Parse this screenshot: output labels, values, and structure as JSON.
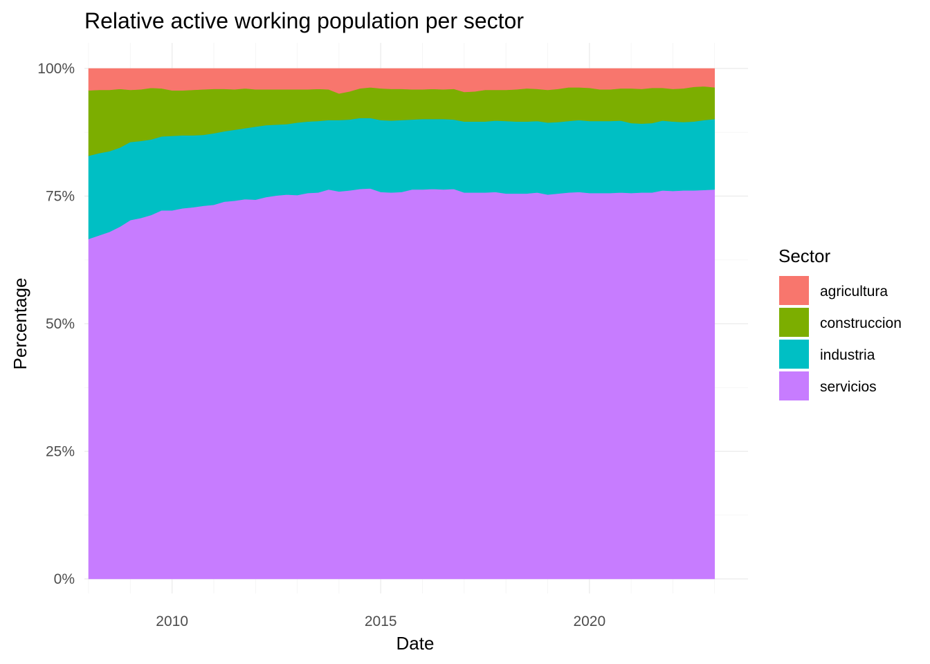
{
  "chart_data": {
    "type": "area",
    "stacked": true,
    "normalized": true,
    "title": "Relative active working population per sector",
    "xlabel": "Date",
    "ylabel": "Percentage",
    "x_ticks": [
      2010,
      2015,
      2020
    ],
    "y_ticks": [
      "0%",
      "25%",
      "50%",
      "75%",
      "100%"
    ],
    "xlim": [
      2007.9,
      2023.8
    ],
    "ylim": [
      0,
      1
    ],
    "grid": true,
    "legend": {
      "title": "Sector",
      "position": "right"
    },
    "x": [
      2008.0,
      2008.25,
      2008.5,
      2008.75,
      2009.0,
      2009.25,
      2009.5,
      2009.75,
      2010.0,
      2010.25,
      2010.5,
      2010.75,
      2011.0,
      2011.25,
      2011.5,
      2011.75,
      2012.0,
      2012.25,
      2012.5,
      2012.75,
      2013.0,
      2013.25,
      2013.5,
      2013.75,
      2014.0,
      2014.25,
      2014.5,
      2014.75,
      2015.0,
      2015.25,
      2015.5,
      2015.75,
      2016.0,
      2016.25,
      2016.5,
      2016.75,
      2017.0,
      2017.25,
      2017.5,
      2017.75,
      2018.0,
      2018.25,
      2018.5,
      2018.75,
      2019.0,
      2019.25,
      2019.5,
      2019.75,
      2020.0,
      2020.25,
      2020.5,
      2020.75,
      2021.0,
      2021.25,
      2021.5,
      2021.75,
      2022.0,
      2022.25,
      2022.5,
      2022.75,
      2023.0
    ],
    "series": [
      {
        "name": "servicios",
        "color": "#C77CFF",
        "values": [
          0.666,
          0.673,
          0.68,
          0.69,
          0.703,
          0.707,
          0.713,
          0.722,
          0.722,
          0.726,
          0.728,
          0.731,
          0.733,
          0.739,
          0.741,
          0.744,
          0.743,
          0.748,
          0.751,
          0.753,
          0.752,
          0.756,
          0.757,
          0.763,
          0.759,
          0.761,
          0.764,
          0.765,
          0.758,
          0.757,
          0.758,
          0.763,
          0.763,
          0.764,
          0.763,
          0.764,
          0.757,
          0.757,
          0.757,
          0.758,
          0.755,
          0.755,
          0.755,
          0.757,
          0.753,
          0.755,
          0.757,
          0.758,
          0.756,
          0.756,
          0.756,
          0.757,
          0.756,
          0.757,
          0.757,
          0.761,
          0.76,
          0.761,
          0.761,
          0.762,
          0.763
        ]
      },
      {
        "name": "industria",
        "color": "#00BFC4",
        "values": [
          0.163,
          0.161,
          0.158,
          0.155,
          0.153,
          0.151,
          0.148,
          0.145,
          0.146,
          0.143,
          0.141,
          0.139,
          0.14,
          0.138,
          0.139,
          0.139,
          0.143,
          0.141,
          0.139,
          0.138,
          0.142,
          0.14,
          0.14,
          0.136,
          0.14,
          0.139,
          0.139,
          0.138,
          0.141,
          0.141,
          0.141,
          0.137,
          0.138,
          0.137,
          0.138,
          0.136,
          0.139,
          0.139,
          0.139,
          0.14,
          0.142,
          0.141,
          0.141,
          0.14,
          0.141,
          0.14,
          0.14,
          0.141,
          0.141,
          0.141,
          0.141,
          0.141,
          0.137,
          0.135,
          0.136,
          0.137,
          0.136,
          0.134,
          0.135,
          0.137,
          0.138
        ]
      },
      {
        "name": "construccion",
        "color": "#7CAE00",
        "values": [
          0.128,
          0.124,
          0.12,
          0.115,
          0.102,
          0.101,
          0.101,
          0.094,
          0.089,
          0.088,
          0.089,
          0.089,
          0.087,
          0.083,
          0.079,
          0.078,
          0.073,
          0.07,
          0.069,
          0.068,
          0.065,
          0.063,
          0.063,
          0.06,
          0.052,
          0.055,
          0.058,
          0.06,
          0.062,
          0.062,
          0.061,
          0.059,
          0.058,
          0.059,
          0.058,
          0.06,
          0.058,
          0.059,
          0.062,
          0.06,
          0.061,
          0.063,
          0.065,
          0.063,
          0.064,
          0.065,
          0.066,
          0.064,
          0.065,
          0.062,
          0.062,
          0.063,
          0.068,
          0.068,
          0.069,
          0.064,
          0.064,
          0.066,
          0.068,
          0.066,
          0.062
        ]
      },
      {
        "name": "agricultura",
        "color": "#F8766D",
        "values": [
          0.043,
          0.042,
          0.042,
          0.04,
          0.042,
          0.041,
          0.038,
          0.039,
          0.043,
          0.043,
          0.042,
          0.041,
          0.04,
          0.04,
          0.041,
          0.039,
          0.041,
          0.041,
          0.041,
          0.041,
          0.041,
          0.041,
          0.04,
          0.041,
          0.049,
          0.045,
          0.039,
          0.037,
          0.039,
          0.04,
          0.04,
          0.041,
          0.041,
          0.04,
          0.041,
          0.04,
          0.046,
          0.045,
          0.042,
          0.042,
          0.042,
          0.041,
          0.039,
          0.04,
          0.042,
          0.04,
          0.037,
          0.037,
          0.038,
          0.041,
          0.041,
          0.039,
          0.039,
          0.04,
          0.038,
          0.038,
          0.04,
          0.039,
          0.036,
          0.035,
          0.037
        ]
      }
    ],
    "legend_order": [
      "agricultura",
      "construccion",
      "industria",
      "servicios"
    ]
  }
}
